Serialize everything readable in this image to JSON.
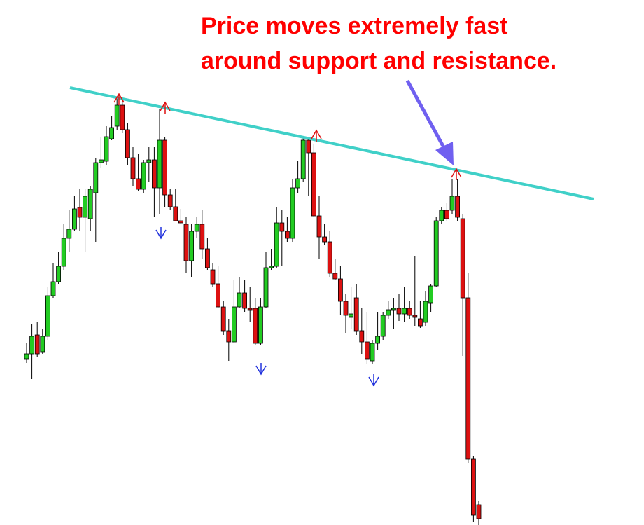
{
  "chart_data": {
    "type": "candlestick",
    "annotation": [
      "Price moves extremely fast",
      "around support and resistance."
    ],
    "annotation_color": "#ff0000",
    "up_color": "#22cc22",
    "down_color": "#dd1111",
    "trendline_color": "#40d0c8",
    "categories": [
      null,
      null,
      null,
      null,
      null,
      null,
      null,
      null,
      null,
      null,
      null,
      null,
      null,
      null,
      null,
      null,
      null,
      null,
      null,
      null,
      null,
      null,
      null,
      null,
      null,
      null,
      null,
      null,
      null,
      null,
      null,
      null,
      null,
      null,
      null,
      null,
      null,
      null,
      null,
      null,
      null,
      null,
      null,
      null,
      null,
      null,
      null,
      null,
      null,
      null,
      null,
      null,
      null,
      null,
      null,
      null,
      null,
      null,
      null,
      null,
      null,
      null,
      null,
      null,
      null,
      null,
      null,
      null,
      null,
      null,
      null,
      null,
      null,
      null,
      null,
      null,
      null,
      null,
      null,
      null,
      null,
      null,
      null,
      null,
      null,
      null
    ],
    "open": [
      238,
      245,
      272,
      248,
      270,
      328,
      348,
      370,
      410,
      423,
      454,
      440,
      438,
      475,
      518,
      520,
      552,
      570,
      600,
      565,
      525,
      495,
      480,
      518,
      522,
      482,
      550,
      472,
      455,
      435,
      430,
      378,
      420,
      430,
      395,
      365,
      345,
      312,
      278,
      262,
      312,
      332,
      310,
      310,
      260,
      312,
      368,
      370,
      432,
      420,
      410,
      482,
      495,
      550,
      532,
      442,
      412,
      405,
      360,
      352,
      320,
      298,
      325,
      278,
      262,
      235,
      260,
      270,
      300,
      308,
      310,
      302,
      310,
      300,
      295,
      290,
      318,
      342,
      435,
      450,
      450,
      470,
      438,
      325,
      95,
      30
    ],
    "high": [
      260,
      288,
      290,
      280,
      340,
      375,
      390,
      430,
      450,
      470,
      480,
      480,
      485,
      525,
      555,
      570,
      585,
      610,
      610,
      575,
      540,
      530,
      522,
      540,
      540,
      595,
      555,
      480,
      480,
      452,
      440,
      430,
      440,
      450,
      410,
      375,
      370,
      320,
      295,
      350,
      355,
      350,
      340,
      325,
      325,
      390,
      395,
      455,
      450,
      440,
      495,
      520,
      555,
      555,
      545,
      470,
      430,
      420,
      380,
      370,
      330,
      340,
      345,
      310,
      305,
      265,
      305,
      305,
      320,
      325,
      330,
      340,
      320,
      385,
      320,
      335,
      345,
      440,
      455,
      460,
      495,
      495,
      445,
      360,
      100,
      35
    ],
    "low": [
      232,
      210,
      240,
      245,
      265,
      325,
      345,
      365,
      390,
      420,
      420,
      390,
      420,
      405,
      510,
      515,
      550,
      565,
      560,
      515,
      485,
      478,
      475,
      490,
      440,
      445,
      455,
      450,
      435,
      430,
      360,
      355,
      410,
      380,
      365,
      340,
      310,
      272,
      235,
      260,
      310,
      305,
      290,
      258,
      258,
      310,
      365,
      368,
      370,
      405,
      405,
      475,
      490,
      470,
      440,
      380,
      400,
      355,
      350,
      300,
      275,
      280,
      272,
      245,
      230,
      230,
      250,
      265,
      295,
      280,
      292,
      290,
      295,
      285,
      282,
      285,
      305,
      340,
      430,
      435,
      445,
      435,
      242,
      90,
      5,
      1
    ],
    "close": [
      245,
      270,
      245,
      270,
      328,
      348,
      370,
      410,
      423,
      452,
      440,
      470,
      480,
      518,
      522,
      555,
      568,
      600,
      565,
      525,
      495,
      480,
      518,
      522,
      482,
      550,
      472,
      455,
      435,
      432,
      378,
      420,
      430,
      395,
      368,
      345,
      312,
      278,
      262,
      312,
      332,
      310,
      308,
      260,
      312,
      368,
      370,
      432,
      420,
      410,
      482,
      495,
      550,
      532,
      442,
      412,
      405,
      360,
      352,
      320,
      300,
      302,
      278,
      262,
      238,
      260,
      270,
      300,
      308,
      310,
      302,
      310,
      300,
      298,
      285,
      320,
      342,
      435,
      450,
      438,
      470,
      440,
      325,
      95,
      15,
      10
    ],
    "ylim": [
      0,
      750
    ]
  }
}
